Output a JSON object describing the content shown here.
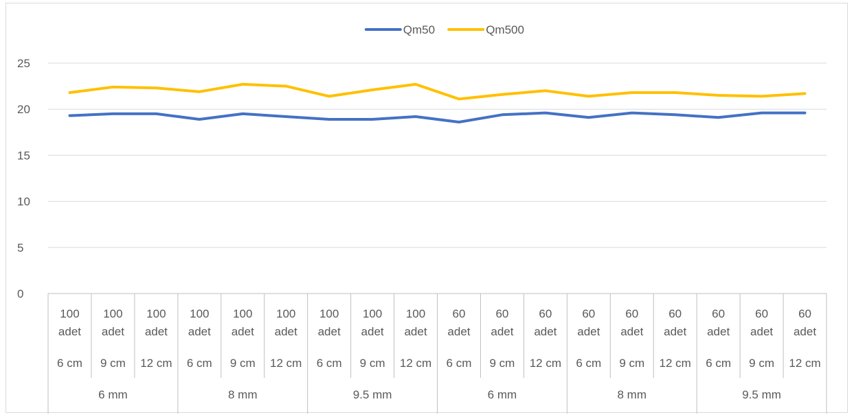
{
  "chart_data": {
    "type": "line",
    "title": "",
    "xlabel": "",
    "ylabel": "",
    "ylim": [
      0,
      25
    ],
    "yticks": [
      0,
      5,
      10,
      15,
      20,
      25
    ],
    "grid": true,
    "legend_position": "top",
    "categories": [
      [
        "100 adet",
        "6 cm",
        "6 mm"
      ],
      [
        "100 adet",
        "9 cm",
        "6 mm"
      ],
      [
        "100 adet",
        "12 cm",
        "6 mm"
      ],
      [
        "100 adet",
        "6 cm",
        "8 mm"
      ],
      [
        "100 adet",
        "9 cm",
        "8 mm"
      ],
      [
        "100 adet",
        "12 cm",
        "8 mm"
      ],
      [
        "100 adet",
        "6 cm",
        "9.5 mm"
      ],
      [
        "100 adet",
        "9 cm",
        "9.5 mm"
      ],
      [
        "100 adet",
        "12 cm",
        "9.5 mm"
      ],
      [
        "60 adet",
        "6 cm",
        "6 mm"
      ],
      [
        "60 adet",
        "9 cm",
        "6 mm"
      ],
      [
        "60 adet",
        "12 cm",
        "6 mm"
      ],
      [
        "60 adet",
        "6 cm",
        "8 mm"
      ],
      [
        "60 adet",
        "9 cm",
        "8 mm"
      ],
      [
        "60 adet",
        "12 cm",
        "8 mm"
      ],
      [
        "60 adet",
        "6 cm",
        "9.5 mm"
      ],
      [
        "60 adet",
        "9 cm",
        "9.5 mm"
      ],
      [
        "60 adet",
        "12 cm",
        "9.5 mm"
      ]
    ],
    "level1_labels": [
      "100\nadet",
      "100\nadet",
      "100\nadet",
      "100\nadet",
      "100\nadet",
      "100\nadet",
      "100\nadet",
      "100\nadet",
      "100\nadet",
      "60\nadet",
      "60\nadet",
      "60\nadet",
      "60\nadet",
      "60\nadet",
      "60\nadet",
      "60\nadet",
      "60\nadet",
      "60\nadet"
    ],
    "level2_labels": [
      "6 cm",
      "9 cm",
      "12 cm",
      "6 cm",
      "9 cm",
      "12 cm",
      "6 cm",
      "9 cm",
      "12 cm",
      "6 cm",
      "9 cm",
      "12 cm",
      "6 cm",
      "9 cm",
      "12 cm",
      "6 cm",
      "9 cm",
      "12 cm"
    ],
    "level3_groups": [
      {
        "label": "6 mm",
        "span": 3
      },
      {
        "label": "8 mm",
        "span": 3
      },
      {
        "label": "9.5 mm",
        "span": 3
      },
      {
        "label": "6 mm",
        "span": 3
      },
      {
        "label": "8 mm",
        "span": 3
      },
      {
        "label": "9.5 mm",
        "span": 3
      }
    ],
    "series": [
      {
        "name": "Qm50",
        "color": "#4472C4",
        "values": [
          19.3,
          19.5,
          19.5,
          18.9,
          19.5,
          19.2,
          18.9,
          18.9,
          19.2,
          18.6,
          19.4,
          19.6,
          19.1,
          19.6,
          19.4,
          19.1,
          19.6,
          19.6
        ]
      },
      {
        "name": "Qm500",
        "color": "#FFC000",
        "values": [
          21.8,
          22.4,
          22.3,
          21.9,
          22.7,
          22.5,
          21.4,
          22.1,
          22.7,
          21.1,
          21.6,
          22.0,
          21.4,
          21.8,
          21.8,
          21.5,
          21.4,
          21.7
        ]
      }
    ]
  }
}
